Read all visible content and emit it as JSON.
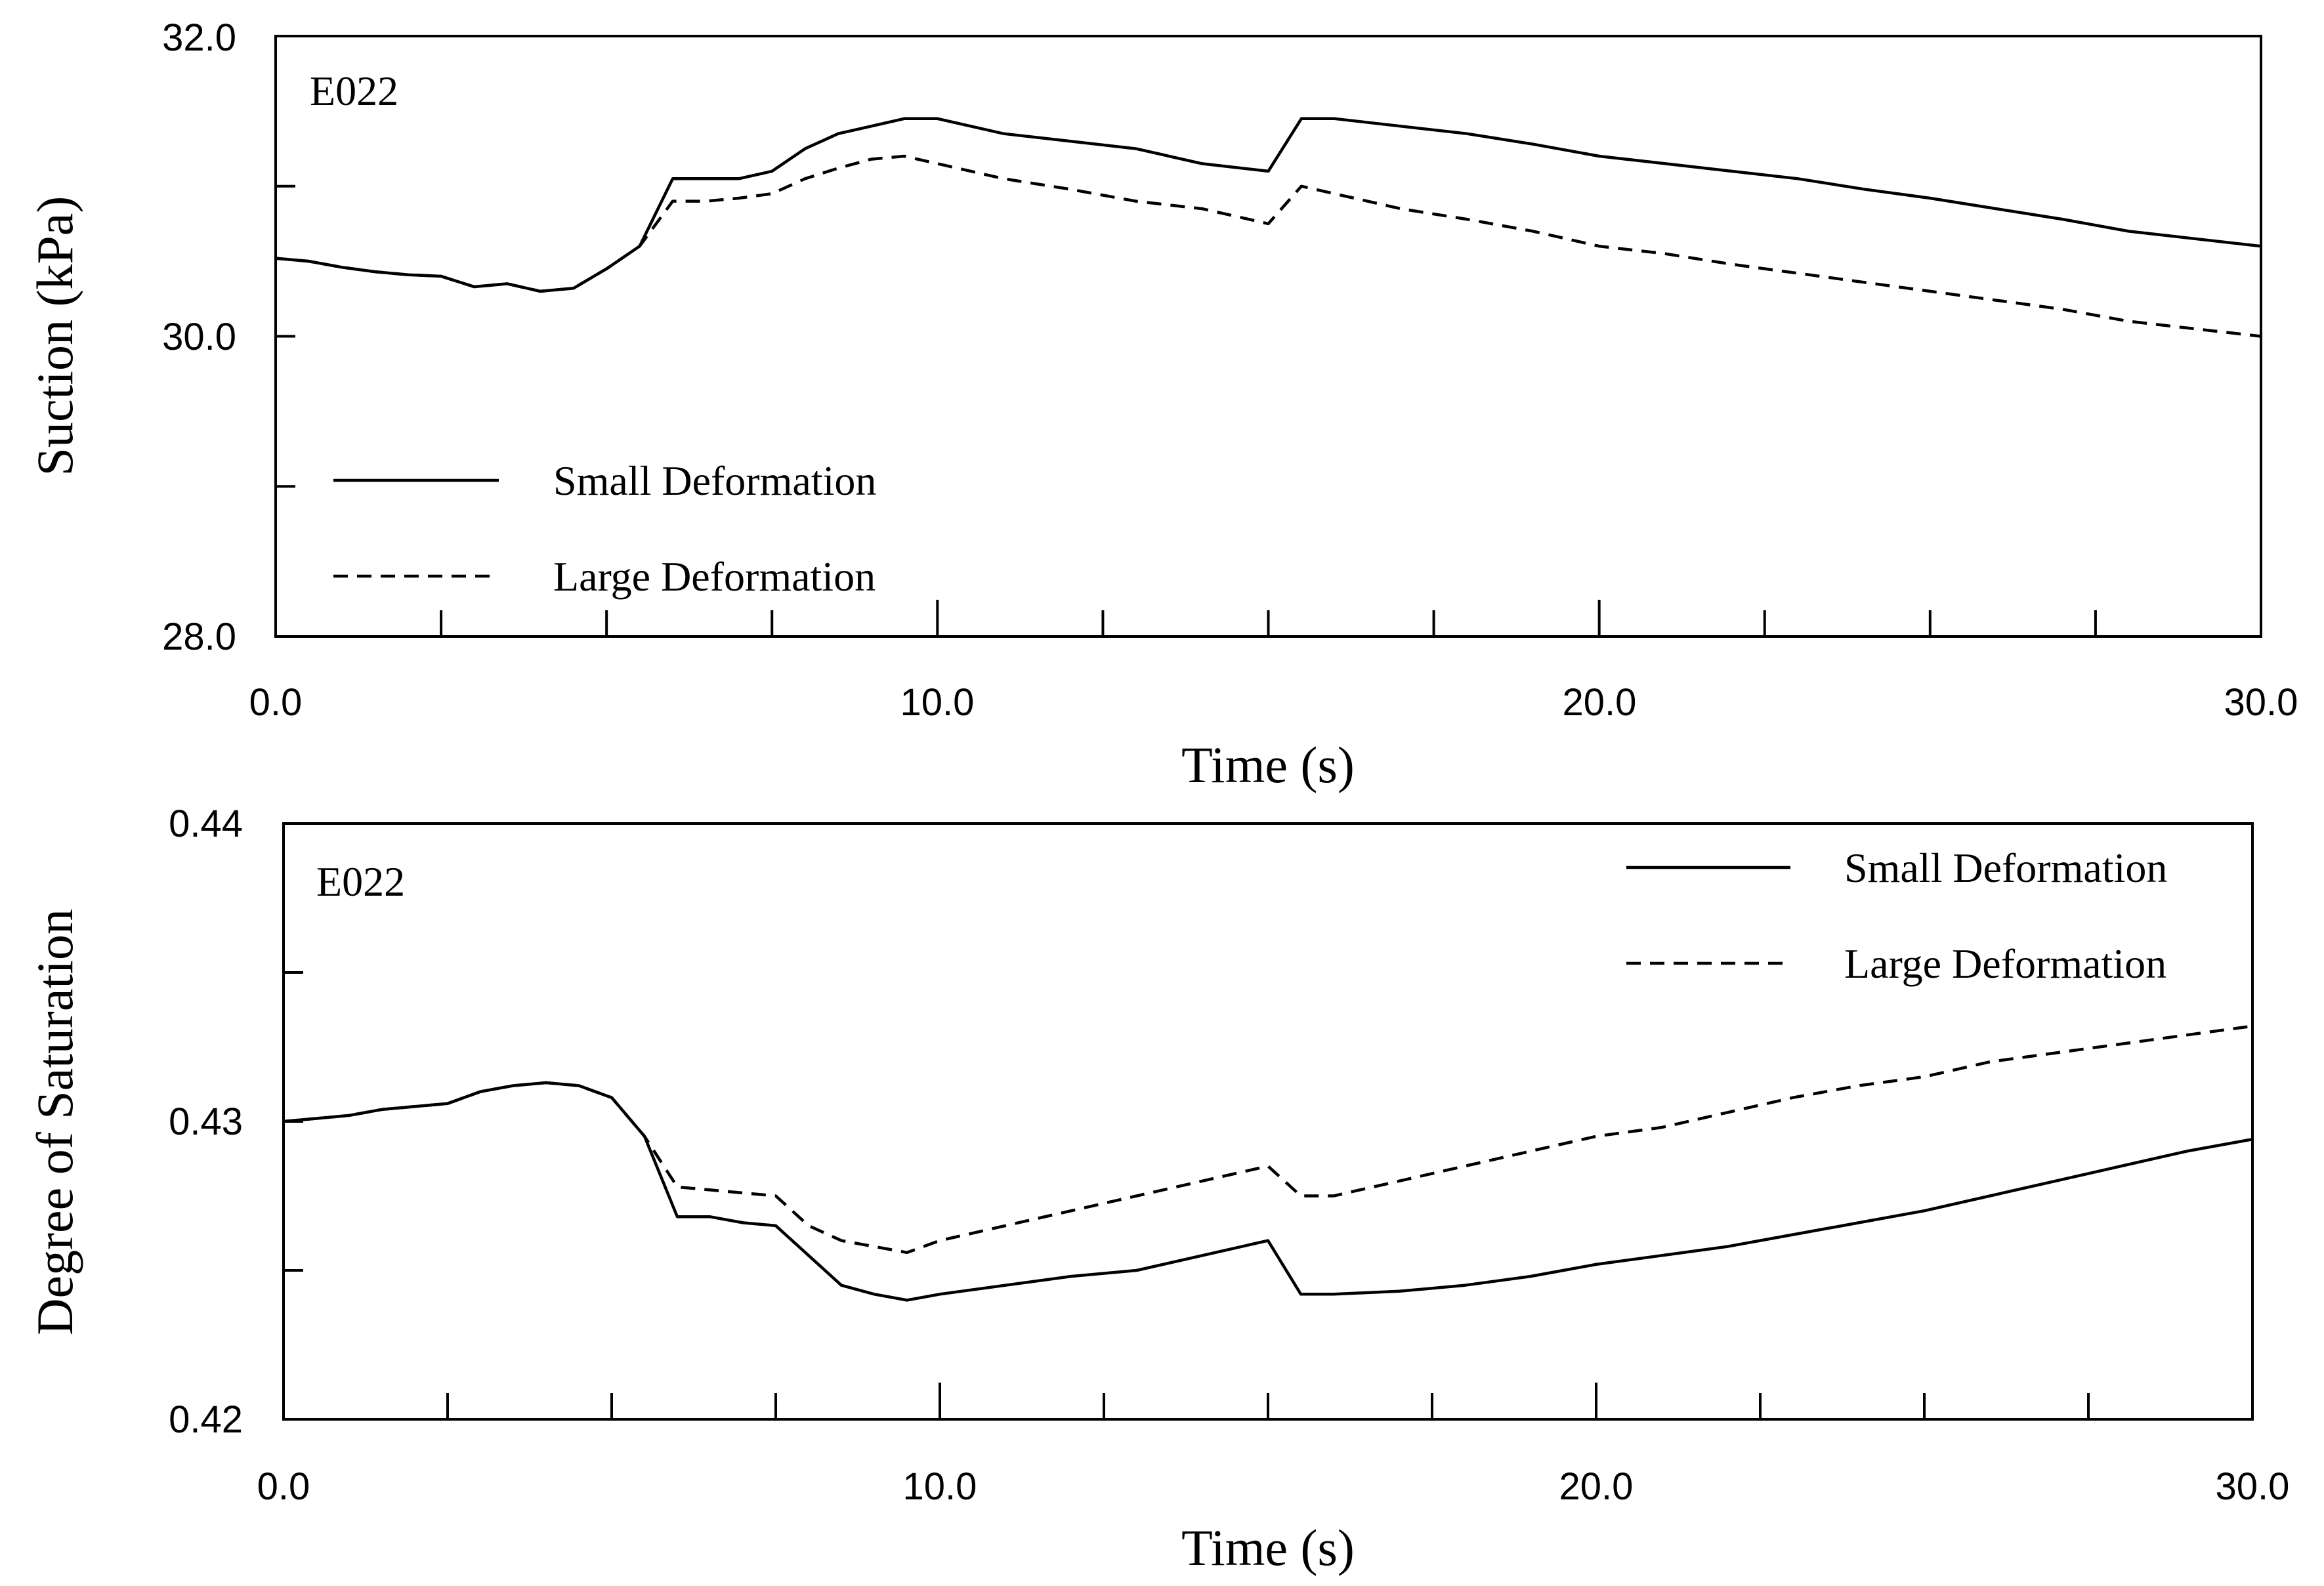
{
  "chart_data": [
    {
      "type": "line",
      "panel_label": "E022",
      "title": "",
      "xlabel": "Time (s)",
      "ylabel": "Suction (kPa)",
      "xlim": [
        0,
        30
      ],
      "ylim": [
        28,
        32
      ],
      "x_tick_labels": [
        "0.0",
        "10.0",
        "20.0",
        "30.0"
      ],
      "y_tick_labels": [
        "28.0",
        "30.0",
        "32.0"
      ],
      "legend_position": "bottom-left",
      "series": [
        {
          "name": "Small Deformation",
          "style": "solid",
          "x": [
            0,
            0.5,
            1.0,
            1.5,
            2.0,
            2.5,
            3.0,
            3.5,
            4.0,
            4.5,
            5.0,
            5.5,
            6.0,
            6.5,
            7.0,
            7.5,
            8.0,
            8.5,
            9.0,
            9.5,
            10.0,
            11.0,
            12.0,
            13.0,
            14.0,
            15.0,
            15.5,
            16.0,
            17.0,
            18.0,
            19.0,
            20.0,
            21.0,
            22.0,
            23.0,
            24.0,
            25.0,
            26.0,
            27.0,
            28.0,
            29.0,
            30.0
          ],
          "y": [
            30.52,
            30.5,
            30.46,
            30.43,
            30.41,
            30.4,
            30.33,
            30.35,
            30.3,
            30.32,
            30.45,
            30.6,
            31.05,
            31.05,
            31.05,
            31.1,
            31.25,
            31.35,
            31.4,
            31.45,
            31.45,
            31.35,
            31.3,
            31.25,
            31.15,
            31.1,
            31.45,
            31.45,
            31.4,
            31.35,
            31.28,
            31.2,
            31.15,
            31.1,
            31.05,
            30.98,
            30.92,
            30.85,
            30.78,
            30.7,
            30.65,
            30.6
          ]
        },
        {
          "name": "Large Deformation",
          "style": "dashed",
          "x": [
            0,
            0.5,
            1.0,
            1.5,
            2.0,
            2.5,
            3.0,
            3.5,
            4.0,
            4.5,
            5.0,
            5.5,
            6.0,
            6.5,
            7.0,
            7.5,
            8.0,
            8.5,
            9.0,
            9.5,
            10.0,
            11.0,
            12.0,
            13.0,
            14.0,
            15.0,
            15.5,
            16.0,
            17.0,
            18.0,
            19.0,
            20.0,
            21.0,
            22.0,
            23.0,
            24.0,
            25.0,
            26.0,
            27.0,
            28.0,
            29.0,
            30.0
          ],
          "y": [
            30.52,
            30.5,
            30.46,
            30.43,
            30.41,
            30.4,
            30.33,
            30.35,
            30.3,
            30.32,
            30.45,
            30.6,
            30.9,
            30.9,
            30.92,
            30.95,
            31.05,
            31.12,
            31.18,
            31.2,
            31.15,
            31.05,
            30.98,
            30.9,
            30.85,
            30.75,
            31.0,
            30.95,
            30.85,
            30.78,
            30.7,
            30.6,
            30.55,
            30.48,
            30.42,
            30.36,
            30.3,
            30.24,
            30.18,
            30.1,
            30.05,
            30.0
          ]
        }
      ]
    },
    {
      "type": "line",
      "panel_label": "E022",
      "title": "",
      "xlabel": "Time (s)",
      "ylabel": "Degree of Saturation",
      "xlim": [
        0,
        30
      ],
      "ylim": [
        0.42,
        0.44
      ],
      "x_tick_labels": [
        "0.0",
        "10.0",
        "20.0",
        "30.0"
      ],
      "y_tick_labels": [
        "0.42",
        "0.43",
        "0.44"
      ],
      "legend_position": "top-right",
      "series": [
        {
          "name": "Small Deformation",
          "style": "solid",
          "x": [
            0,
            0.5,
            1.0,
            1.5,
            2.0,
            2.5,
            3.0,
            3.5,
            4.0,
            4.5,
            5.0,
            5.5,
            6.0,
            6.5,
            7.0,
            7.5,
            8.0,
            8.5,
            9.0,
            9.5,
            10.0,
            11.0,
            12.0,
            13.0,
            14.0,
            15.0,
            15.5,
            16.0,
            17.0,
            18.0,
            19.0,
            20.0,
            21.0,
            22.0,
            23.0,
            24.0,
            25.0,
            26.0,
            27.0,
            28.0,
            29.0,
            30.0
          ],
          "y": [
            0.43,
            0.4301,
            0.4302,
            0.4304,
            0.4305,
            0.4306,
            0.431,
            0.4312,
            0.4313,
            0.4312,
            0.4308,
            0.4295,
            0.4268,
            0.4268,
            0.4266,
            0.4265,
            0.4255,
            0.4245,
            0.4242,
            0.424,
            0.4242,
            0.4245,
            0.4248,
            0.425,
            0.4255,
            0.426,
            0.4242,
            0.4242,
            0.4243,
            0.4245,
            0.4248,
            0.4252,
            0.4255,
            0.4258,
            0.4262,
            0.4266,
            0.427,
            0.4275,
            0.428,
            0.4285,
            0.429,
            0.4294
          ]
        },
        {
          "name": "Large Deformation",
          "style": "dashed",
          "x": [
            0,
            0.5,
            1.0,
            1.5,
            2.0,
            2.5,
            3.0,
            3.5,
            4.0,
            4.5,
            5.0,
            5.5,
            6.0,
            6.5,
            7.0,
            7.5,
            8.0,
            8.5,
            9.0,
            9.5,
            10.0,
            11.0,
            12.0,
            13.0,
            14.0,
            15.0,
            15.5,
            16.0,
            17.0,
            18.0,
            19.0,
            20.0,
            21.0,
            22.0,
            23.0,
            24.0,
            25.0,
            26.0,
            27.0,
            28.0,
            29.0,
            30.0
          ],
          "y": [
            0.43,
            0.4301,
            0.4302,
            0.4304,
            0.4305,
            0.4306,
            0.431,
            0.4312,
            0.4313,
            0.4312,
            0.4308,
            0.4295,
            0.4278,
            0.4277,
            0.4276,
            0.4275,
            0.4265,
            0.426,
            0.4258,
            0.4256,
            0.426,
            0.4265,
            0.427,
            0.4275,
            0.428,
            0.4285,
            0.4275,
            0.4275,
            0.428,
            0.4285,
            0.429,
            0.4295,
            0.4298,
            0.4303,
            0.4308,
            0.4312,
            0.4315,
            0.432,
            0.4323,
            0.4326,
            0.4329,
            0.4332
          ]
        }
      ]
    }
  ]
}
